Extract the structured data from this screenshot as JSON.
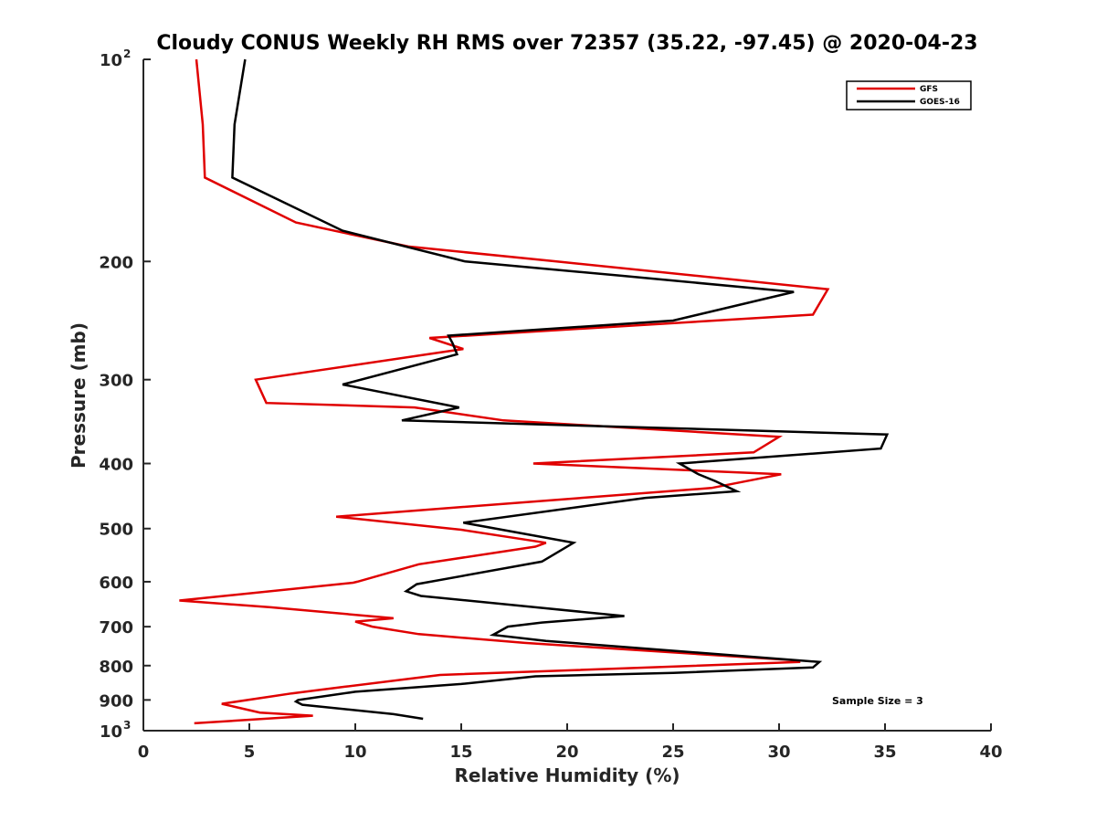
{
  "chart_data": {
    "type": "line",
    "title": "Cloudy CONUS Weekly RH RMS over 72357 (35.22, -97.45) @ 2020-04-23",
    "xlabel": "Relative Humidity (%)",
    "ylabel": "Pressure (mb)",
    "xlim": [
      0,
      40
    ],
    "ylim": [
      100,
      1000
    ],
    "y_scale": "log",
    "y_reversed": true,
    "grid": false,
    "legend_position": "top-right",
    "x_ticks": [
      "0",
      "5",
      "10",
      "15",
      "20",
      "25",
      "30",
      "35",
      "40"
    ],
    "y_ticks": [
      {
        "value": 100,
        "base": "10",
        "exp": "2"
      },
      {
        "value": 200,
        "label": "200"
      },
      {
        "value": 300,
        "label": "300"
      },
      {
        "value": 400,
        "label": "400"
      },
      {
        "value": 500,
        "label": "500"
      },
      {
        "value": 600,
        "label": "600"
      },
      {
        "value": 700,
        "label": "700"
      },
      {
        "value": 800,
        "label": "800"
      },
      {
        "value": 900,
        "label": "900"
      },
      {
        "value": 1000,
        "base": "10",
        "exp": "3"
      }
    ],
    "series": [
      {
        "name": "GFS",
        "color": "#e00000",
        "points": [
          [
            2.5,
            100
          ],
          [
            2.8,
            125
          ],
          [
            2.9,
            150
          ],
          [
            7.2,
            175
          ],
          [
            12.5,
            190
          ],
          [
            19.5,
            200
          ],
          [
            32.3,
            220
          ],
          [
            31.6,
            240
          ],
          [
            13.5,
            260
          ],
          [
            15.1,
            270
          ],
          [
            5.3,
            300
          ],
          [
            5.8,
            325
          ],
          [
            12.8,
            330
          ],
          [
            17.0,
            345
          ],
          [
            30.0,
            365
          ],
          [
            28.8,
            385
          ],
          [
            18.4,
            400
          ],
          [
            30.1,
            415
          ],
          [
            26.8,
            435
          ],
          [
            9.1,
            480
          ],
          [
            15.0,
            502
          ],
          [
            19.0,
            525
          ],
          [
            18.5,
            532
          ],
          [
            13.0,
            565
          ],
          [
            10.1,
            600
          ],
          [
            9.9,
            602
          ],
          [
            1.7,
            640
          ],
          [
            6.0,
            655
          ],
          [
            11.8,
            680
          ],
          [
            10.0,
            688
          ],
          [
            10.8,
            700
          ],
          [
            13.0,
            718
          ],
          [
            18.0,
            740
          ],
          [
            30.6,
            785
          ],
          [
            31.0,
            790
          ],
          [
            14.0,
            826
          ],
          [
            9.5,
            860
          ],
          [
            7.0,
            880
          ],
          [
            3.7,
            912
          ],
          [
            5.5,
            940
          ],
          [
            8.0,
            950
          ],
          [
            2.4,
            975
          ]
        ]
      },
      {
        "name": "GOES-16",
        "color": "#000000",
        "points": [
          [
            4.8,
            100
          ],
          [
            4.3,
            125
          ],
          [
            4.2,
            150
          ],
          [
            9.4,
            180
          ],
          [
            15.2,
            200
          ],
          [
            22.5,
            210
          ],
          [
            30.7,
            222
          ],
          [
            25.0,
            245
          ],
          [
            14.4,
            258
          ],
          [
            14.6,
            265
          ],
          [
            14.8,
            275
          ],
          [
            9.4,
            305
          ],
          [
            14.9,
            330
          ],
          [
            12.2,
            345
          ],
          [
            35.1,
            362
          ],
          [
            34.8,
            380
          ],
          [
            25.3,
            400
          ],
          [
            26.2,
            415
          ],
          [
            27.0,
            425
          ],
          [
            28.0,
            440
          ],
          [
            23.7,
            450
          ],
          [
            15.1,
            490
          ],
          [
            20.3,
            525
          ],
          [
            18.8,
            560
          ],
          [
            12.9,
            605
          ],
          [
            12.4,
            620
          ],
          [
            13.1,
            630
          ],
          [
            18.5,
            655
          ],
          [
            22.7,
            675
          ],
          [
            18.8,
            690
          ],
          [
            17.2,
            700
          ],
          [
            16.5,
            720
          ],
          [
            19.0,
            735
          ],
          [
            31.9,
            790
          ],
          [
            31.6,
            805
          ],
          [
            25.0,
            820
          ],
          [
            18.5,
            830
          ],
          [
            15.0,
            852
          ],
          [
            10.0,
            875
          ],
          [
            7.3,
            900
          ],
          [
            7.2,
            905
          ],
          [
            7.5,
            915
          ],
          [
            11.8,
            945
          ],
          [
            13.2,
            960
          ]
        ]
      }
    ],
    "annotation": "Sample Size = 3"
  }
}
